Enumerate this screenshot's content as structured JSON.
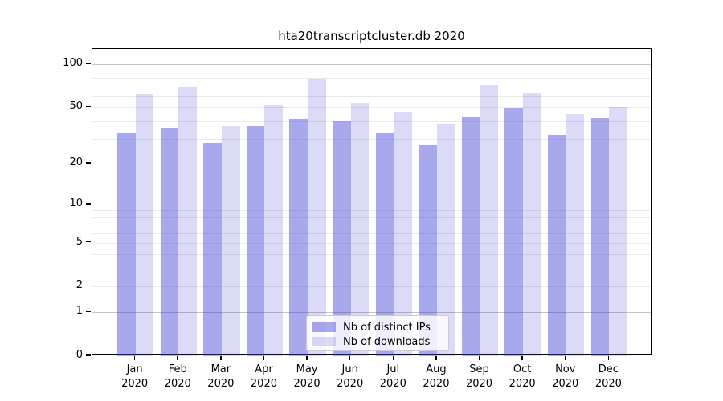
{
  "chart_data": {
    "type": "bar",
    "title": "hta20transcriptcluster.db 2020",
    "categories": [
      "Jan",
      "Feb",
      "Mar",
      "Apr",
      "May",
      "Jun",
      "Jul",
      "Aug",
      "Sep",
      "Oct",
      "Nov",
      "Dec"
    ],
    "category_year": "2020",
    "series": [
      {
        "name": "Nb of distinct IPs",
        "color": "rgba(62,62,215,0.45)",
        "values": [
          33,
          36,
          28,
          37,
          41,
          40,
          33,
          27,
          43,
          49,
          32,
          42
        ]
      },
      {
        "name": "Nb of downloads",
        "color": "rgba(62,62,215,0.19)",
        "values": [
          62,
          70,
          37,
          52,
          79,
          53,
          46,
          38,
          72,
          63,
          45,
          50
        ]
      }
    ],
    "yscale": "log1p",
    "yticks": [
      0,
      1,
      2,
      5,
      10,
      20,
      50,
      100
    ],
    "minor_yticks": [
      3,
      4,
      6,
      7,
      8,
      9,
      30,
      40,
      60,
      70,
      80,
      90
    ],
    "ylim": [
      0,
      128
    ],
    "xlabel": "",
    "ylabel": "",
    "grid": true,
    "legend_position": "inside-bottom-center"
  },
  "colors": {
    "grid_major": "#c3c3c3",
    "grid_minor": "#e9e9e9",
    "spine": "#000000",
    "background": "#ffffff"
  }
}
